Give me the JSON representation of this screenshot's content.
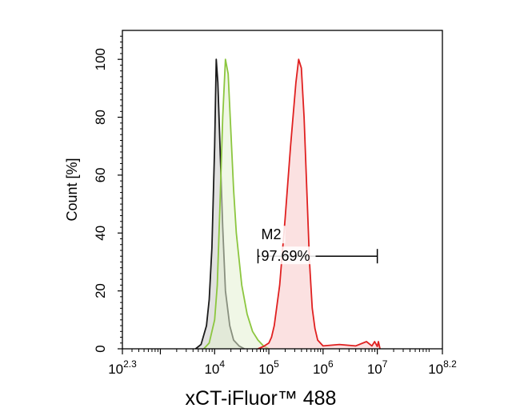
{
  "chart_data": {
    "type": "area",
    "xlabel": "xCT-iFluor™ 488",
    "ylabel": "Count [%]",
    "xscale": "log",
    "xlim_exponent": [
      2.3,
      8.2
    ],
    "ylim": [
      0,
      110
    ],
    "y_ticks": [
      "0",
      "20",
      "40",
      "60",
      "80",
      "100"
    ],
    "x_ticks": [
      {
        "base": "10",
        "exp": "2.3",
        "exponent": 2.3
      },
      {
        "base": "10",
        "exp": "4",
        "exponent": 4
      },
      {
        "base": "10",
        "exp": "5",
        "exponent": 5
      },
      {
        "base": "10",
        "exp": "6",
        "exponent": 6
      },
      {
        "base": "10",
        "exp": "7",
        "exponent": 7
      },
      {
        "base": "10",
        "exp": "8.2",
        "exponent": 8.2
      }
    ],
    "series": [
      {
        "color": "#1a1a1a",
        "fill": "#c9c9c6",
        "fill_opacity": 0.55,
        "log_x": [
          3.65,
          3.75,
          3.85,
          3.9,
          3.95,
          4.0,
          4.03,
          4.06,
          4.1,
          4.15,
          4.2,
          4.28,
          4.35,
          4.45,
          4.55
        ],
        "y": [
          0,
          1.5,
          8,
          17,
          35,
          70,
          100,
          92,
          70,
          42,
          20,
          8,
          3,
          1,
          0
        ]
      },
      {
        "color": "#8cc63f",
        "fill": "#e4f0d2",
        "fill_opacity": 0.55,
        "log_x": [
          3.8,
          3.9,
          4.0,
          4.05,
          4.1,
          4.15,
          4.2,
          4.25,
          4.3,
          4.35,
          4.4,
          4.5,
          4.6,
          4.7,
          4.8,
          4.9,
          5.0
        ],
        "y": [
          0,
          2,
          10,
          22,
          50,
          80,
          100,
          95,
          75,
          55,
          40,
          22,
          12,
          6,
          3,
          1,
          0
        ]
      },
      {
        "color": "#e02020",
        "fill": "#f7c8c8",
        "fill_opacity": 0.55,
        "log_x": [
          4.8,
          4.9,
          5.0,
          5.05,
          5.1,
          5.2,
          5.3,
          5.4,
          5.5,
          5.55,
          5.6,
          5.65,
          5.7,
          5.75,
          5.8,
          5.85,
          5.9,
          6.0,
          6.3,
          6.6,
          6.8,
          6.9,
          6.95,
          7.0,
          7.02,
          7.05
        ],
        "y": [
          0,
          0.8,
          2,
          4,
          8,
          22,
          45,
          70,
          92,
          100,
          97,
          80,
          55,
          30,
          14,
          7,
          3,
          1,
          1.5,
          1,
          2.5,
          1,
          2.5,
          0.8,
          2.5,
          0
        ]
      }
    ],
    "marker": {
      "label": "M2",
      "value_text": "97.69%",
      "range_exponent": [
        4.8,
        7.0
      ],
      "y": 32
    }
  }
}
